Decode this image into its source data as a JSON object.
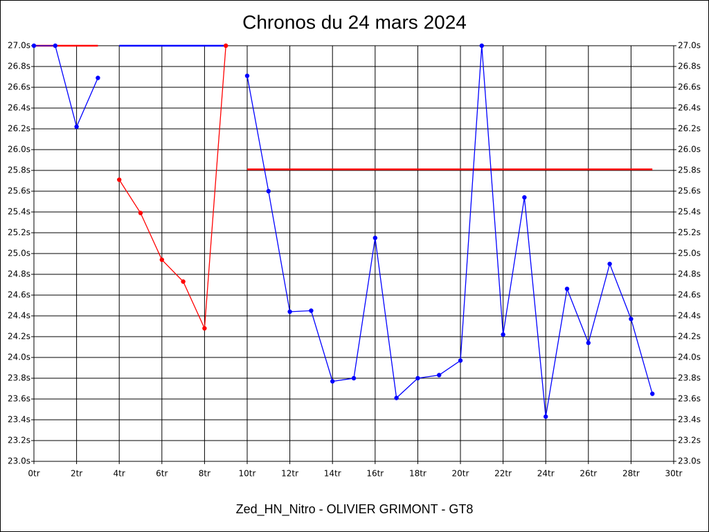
{
  "chart_data": {
    "type": "line",
    "title": "Chronos du 24 mars 2024",
    "xlabel": "Zed_HN_Nitro - OLIVIER GRIMONT - GT8",
    "x": [
      0,
      1,
      2,
      3,
      4,
      5,
      6,
      7,
      8,
      9,
      10,
      11,
      12,
      13,
      14,
      15,
      16,
      17,
      18,
      19,
      20,
      21,
      22,
      23,
      24,
      25,
      26,
      27,
      28,
      29
    ],
    "series": [
      {
        "color": "#0000ff",
        "values": [
          27.0,
          27.0,
          26.22,
          26.69,
          null,
          null,
          null,
          null,
          null,
          null,
          26.71,
          25.6,
          24.44,
          24.45,
          23.77,
          23.8,
          25.15,
          23.61,
          23.8,
          23.83,
          23.97,
          27.0,
          24.22,
          25.54,
          23.43,
          24.66,
          24.14,
          24.9,
          24.37,
          23.65
        ]
      },
      {
        "color": "#ff0000",
        "values": [
          null,
          null,
          null,
          null,
          25.71,
          25.39,
          24.94,
          24.73,
          24.28,
          27.0,
          null,
          null,
          null,
          null,
          null,
          null,
          null,
          null,
          null,
          null,
          null,
          null,
          null,
          null,
          null,
          null,
          null,
          null,
          null,
          null
        ]
      }
    ],
    "ref_lines": [
      {
        "x": [
          0,
          3
        ],
        "y": 27.0,
        "color": "#ff0000"
      },
      {
        "x": [
          4,
          9
        ],
        "y": 27.0,
        "color": "#0000ff"
      },
      {
        "x": [
          10,
          29
        ],
        "y": 25.81,
        "color": "#ff0000"
      }
    ],
    "xlim": [
      0,
      30
    ],
    "ylim": [
      23.0,
      27.0
    ],
    "xticks": [
      {
        "value": 0,
        "label": "0tr"
      },
      {
        "value": 2,
        "label": "2tr"
      },
      {
        "value": 4,
        "label": "4tr"
      },
      {
        "value": 6,
        "label": "6tr"
      },
      {
        "value": 8,
        "label": "8tr"
      },
      {
        "value": 10,
        "label": "10tr"
      },
      {
        "value": 12,
        "label": "12tr"
      },
      {
        "value": 14,
        "label": "14tr"
      },
      {
        "value": 16,
        "label": "16tr"
      },
      {
        "value": 18,
        "label": "18tr"
      },
      {
        "value": 20,
        "label": "20tr"
      },
      {
        "value": 22,
        "label": "22tr"
      },
      {
        "value": 24,
        "label": "24tr"
      },
      {
        "value": 26,
        "label": "26tr"
      },
      {
        "value": 28,
        "label": "28tr"
      },
      {
        "value": 30,
        "label": "30tr"
      }
    ],
    "yticks": [
      {
        "value": 23.0,
        "label": "23.0s"
      },
      {
        "value": 23.2,
        "label": "23.2s"
      },
      {
        "value": 23.4,
        "label": "23.4s"
      },
      {
        "value": 23.6,
        "label": "23.6s"
      },
      {
        "value": 23.8,
        "label": "23.8s"
      },
      {
        "value": 24.0,
        "label": "24.0s"
      },
      {
        "value": 24.2,
        "label": "24.2s"
      },
      {
        "value": 24.4,
        "label": "24.4s"
      },
      {
        "value": 24.6,
        "label": "24.6s"
      },
      {
        "value": 24.8,
        "label": "24.8s"
      },
      {
        "value": 25.0,
        "label": "25.0s"
      },
      {
        "value": 25.2,
        "label": "25.2s"
      },
      {
        "value": 25.4,
        "label": "25.4s"
      },
      {
        "value": 25.6,
        "label": "25.6s"
      },
      {
        "value": 25.8,
        "label": "25.8s"
      },
      {
        "value": 26.0,
        "label": "26.0s"
      },
      {
        "value": 26.2,
        "label": "26.2s"
      },
      {
        "value": 26.4,
        "label": "26.4s"
      },
      {
        "value": 26.6,
        "label": "26.6s"
      },
      {
        "value": 26.8,
        "label": "26.8s"
      },
      {
        "value": 27.0,
        "label": "27.0s"
      }
    ],
    "grid": true
  }
}
